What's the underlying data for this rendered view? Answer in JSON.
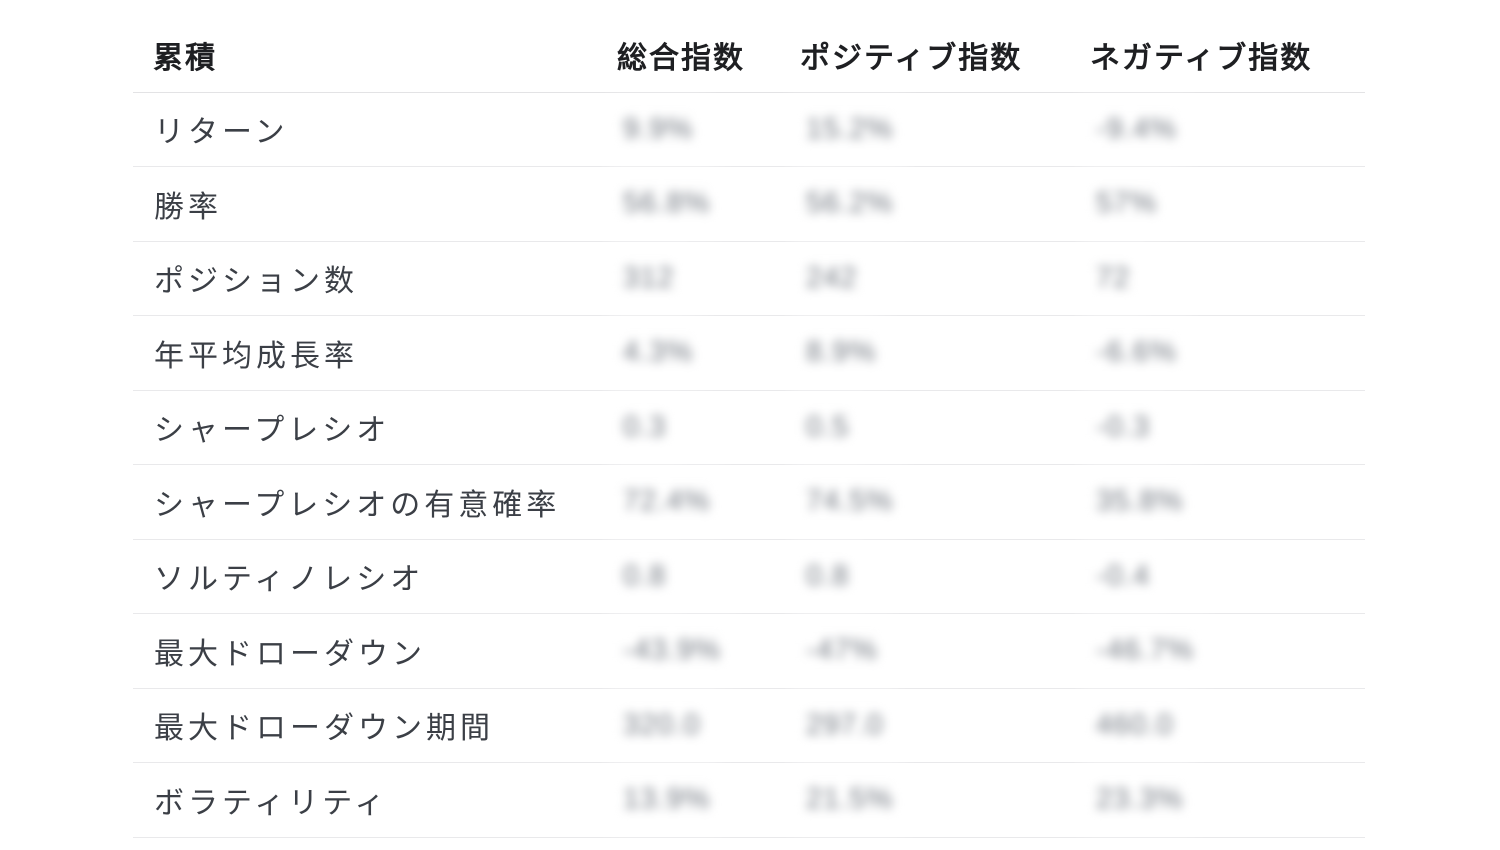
{
  "table": {
    "values_obscured": true,
    "columns": [
      {
        "label": "累積"
      },
      {
        "label": "総合指数"
      },
      {
        "label": "ポジティブ指数"
      },
      {
        "label": "ネガティブ指数"
      }
    ],
    "rows": [
      {
        "label": "リターン",
        "values": [
          "9.9%",
          "15.2%",
          "-9.4%"
        ]
      },
      {
        "label": "勝率",
        "values": [
          "56.8%",
          "56.2%",
          "57%"
        ]
      },
      {
        "label": "ポジション数",
        "values": [
          "312",
          "242",
          "72"
        ]
      },
      {
        "label": "年平均成長率",
        "values": [
          "4.3%",
          "8.9%",
          "-6.6%"
        ]
      },
      {
        "label": "シャープレシオ",
        "values": [
          "0.3",
          "0.5",
          "-0.3"
        ]
      },
      {
        "label": "シャープレシオの有意確率",
        "values": [
          "72.4%",
          "74.5%",
          "35.8%"
        ]
      },
      {
        "label": "ソルティノレシオ",
        "values": [
          "0.8",
          "0.8",
          "-0.4"
        ]
      },
      {
        "label": "最大ドローダウン",
        "values": [
          "-43.9%",
          "-47%",
          "-46.7%"
        ]
      },
      {
        "label": "最大ドローダウン期間",
        "values": [
          "320.0",
          "297.0",
          "460.0"
        ]
      },
      {
        "label": "ボラティリティ",
        "values": [
          "13.9%",
          "21.5%",
          "23.3%"
        ]
      }
    ]
  },
  "colors": {
    "background": "#ffffff",
    "header_text": "#1e1f22",
    "label_text": "#3b3f46",
    "value_text": "#70767f",
    "row_border": "#e9e9eb"
  }
}
